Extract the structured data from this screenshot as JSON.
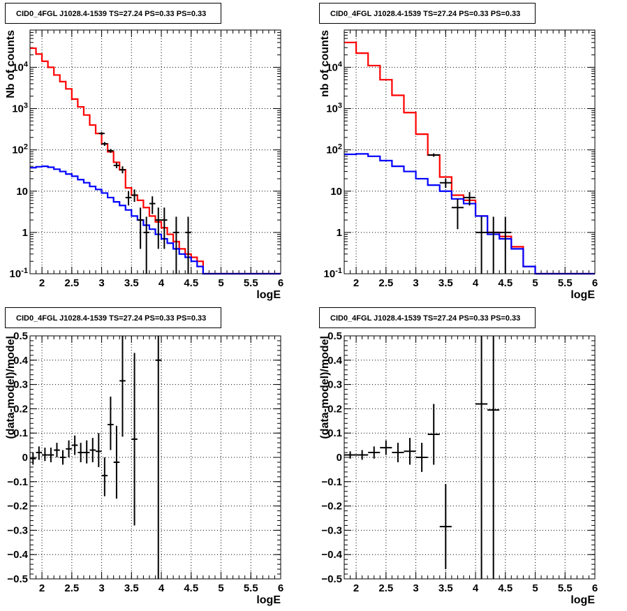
{
  "chart_data": [
    {
      "type": "step-histogram",
      "title": "CID0_4FGL J1028.4-1539 TS=27.24 PS=0.33 PS=0.33",
      "xlabel": "logE",
      "ylabel": "Nb of counts",
      "xlim": [
        1.8,
        6.0
      ],
      "ylim": [
        0.1,
        80000
      ],
      "yscale": "log",
      "grid": true,
      "x_ticks": [
        "2",
        "2.5",
        "3",
        "3.5",
        "4",
        "4.5",
        "5",
        "5.5",
        "6"
      ],
      "y_ticks": [
        "10^-1",
        "1",
        "10",
        "10^2",
        "10^3",
        "10^4"
      ],
      "bin_edges": [
        1.8,
        1.9,
        2.0,
        2.1,
        2.2,
        2.3,
        2.4,
        2.5,
        2.6,
        2.7,
        2.8,
        2.9,
        3.0,
        3.1,
        3.2,
        3.3,
        3.4,
        3.5,
        3.6,
        3.7,
        3.8,
        3.9,
        4.0,
        4.1,
        4.2,
        4.3,
        4.4,
        4.5,
        4.6,
        4.7,
        4.8,
        4.9,
        5.0,
        5.1,
        5.2,
        5.3,
        5.4,
        5.5,
        5.6,
        5.7,
        5.8,
        5.9,
        6.0
      ],
      "series": [
        {
          "color": "#ff0000",
          "style": "step",
          "values": [
            29000,
            21000,
            14000,
            10000,
            6500,
            4500,
            3000,
            1700,
            1100,
            700,
            400,
            250,
            140,
            90,
            50,
            33,
            12,
            8,
            6,
            4,
            2.5,
            1.8,
            1.3,
            0.9,
            0.6,
            0.4,
            0.3,
            0.25,
            0.2,
            0.1,
            0.1,
            0.1,
            0.1,
            0.1,
            0.1,
            0.1,
            0.1,
            0.1,
            0.1,
            0.1,
            0.1,
            0.1
          ]
        },
        {
          "color": "#0000ff",
          "style": "step",
          "values": [
            37,
            39,
            40,
            38,
            34,
            30,
            26,
            23,
            19,
            16,
            13,
            11,
            9,
            7,
            5.5,
            4.5,
            3.5,
            2.5,
            2,
            1.5,
            1.2,
            0.9,
            0.7,
            0.55,
            0.4,
            0.3,
            0.25,
            0.2,
            0.15,
            0.1,
            0.1,
            0.1,
            0.1,
            0.1,
            0.1,
            0.1,
            0.1,
            0.1,
            0.1,
            0.1,
            0.1,
            0.1
          ]
        },
        {
          "color": "#000000",
          "style": "errorbar",
          "points": [
            {
              "x": 3.0,
              "xerr": 0.05,
              "y": 250,
              "ylo": 230,
              "yhi": 270
            },
            {
              "x": 3.05,
              "xerr": 0.05,
              "y": 140,
              "ylo": 125,
              "yhi": 155
            },
            {
              "x": 3.15,
              "xerr": 0.05,
              "y": 95,
              "ylo": 85,
              "yhi": 105
            },
            {
              "x": 3.25,
              "xerr": 0.05,
              "y": 42,
              "ylo": 36,
              "yhi": 49
            },
            {
              "x": 3.35,
              "xerr": 0.05,
              "y": 33,
              "ylo": 27,
              "yhi": 40
            },
            {
              "x": 3.45,
              "xerr": 0.05,
              "y": 7,
              "ylo": 4.5,
              "yhi": 10
            },
            {
              "x": 3.55,
              "xerr": 0.05,
              "y": 8,
              "ylo": 5.5,
              "yhi": 11
            },
            {
              "x": 3.65,
              "xerr": 0.05,
              "y": 2,
              "ylo": 0.4,
              "yhi": 4
            },
            {
              "x": 3.75,
              "xerr": 0.05,
              "y": 1,
              "ylo": 0.1,
              "yhi": 2.4
            },
            {
              "x": 3.85,
              "xerr": 0.05,
              "y": 5,
              "ylo": 2.8,
              "yhi": 7.5
            },
            {
              "x": 3.95,
              "xerr": 0.05,
              "y": 2,
              "ylo": 0.4,
              "yhi": 4
            },
            {
              "x": 4.05,
              "xerr": 0.05,
              "y": 2,
              "ylo": 0.4,
              "yhi": 4
            },
            {
              "x": 4.25,
              "xerr": 0.05,
              "y": 1,
              "ylo": 0.1,
              "yhi": 2.4
            },
            {
              "x": 4.45,
              "xerr": 0.05,
              "y": 1,
              "ylo": 0.1,
              "yhi": 2.4
            }
          ]
        }
      ]
    },
    {
      "type": "step-histogram",
      "title": "CID0_4FGL J1028.4-1539 TS=27.24 PS=0.33 PS=0.33",
      "xlabel": "logE",
      "ylabel": "nb of counts",
      "xlim": [
        1.8,
        6.0
      ],
      "ylim": [
        0.1,
        80000
      ],
      "yscale": "log",
      "grid": true,
      "x_ticks": [
        "2",
        "2.5",
        "3",
        "3.5",
        "4",
        "4.5",
        "5",
        "5.5",
        "6"
      ],
      "y_ticks": [
        "10^-1",
        "1",
        "10",
        "10^2",
        "10^3",
        "10^4"
      ],
      "bin_edges": [
        1.8,
        2.0,
        2.2,
        2.4,
        2.6,
        2.8,
        3.0,
        3.2,
        3.4,
        3.6,
        3.8,
        4.0,
        4.2,
        4.4,
        4.6,
        4.8,
        5.0,
        5.2,
        5.4,
        5.6,
        5.8,
        6.0
      ],
      "series": [
        {
          "color": "#ff0000",
          "style": "step",
          "values": [
            40000,
            22000,
            11000,
            5000,
            2100,
            800,
            240,
            75,
            22,
            8,
            6,
            2.5,
            1,
            0.8,
            0.45,
            0.15,
            0.1,
            0.1,
            0.1,
            0.1,
            0.1
          ]
        },
        {
          "color": "#0000ff",
          "style": "step",
          "values": [
            78,
            80,
            70,
            55,
            40,
            30,
            20,
            14,
            10,
            6.5,
            5,
            2.5,
            0.9,
            0.7,
            0.4,
            0.15,
            0.1,
            0.1,
            0.1,
            0.1,
            0.1
          ]
        },
        {
          "color": "#000000",
          "style": "errorbar",
          "points": [
            {
              "x": 3.3,
              "xerr": 0.1,
              "y": 75,
              "ylo": 68,
              "yhi": 82
            },
            {
              "x": 3.5,
              "xerr": 0.1,
              "y": 16,
              "ylo": 12,
              "yhi": 20
            },
            {
              "x": 3.7,
              "xerr": 0.1,
              "y": 4,
              "ylo": 1.2,
              "yhi": 6.5
            },
            {
              "x": 3.9,
              "xerr": 0.1,
              "y": 7,
              "ylo": 4.5,
              "yhi": 9.5
            },
            {
              "x": 4.1,
              "xerr": 0.1,
              "y": 1,
              "ylo": 0.1,
              "yhi": 2.4
            },
            {
              "x": 4.3,
              "xerr": 0.1,
              "y": 1,
              "ylo": 0.1,
              "yhi": 2.4
            },
            {
              "x": 4.5,
              "xerr": 0.1,
              "y": 1,
              "ylo": 0.1,
              "yhi": 2.4
            }
          ]
        }
      ]
    },
    {
      "type": "scatter",
      "title": "CID0_4FGL J1028.4-1539 TS=27.24 PS=0.33 PS=0.33",
      "xlabel": "logE",
      "ylabel": "(data-model)/model",
      "xlim": [
        1.8,
        6.0
      ],
      "ylim": [
        -0.5,
        0.5
      ],
      "yscale": "linear",
      "grid": true,
      "x_ticks": [
        "2",
        "2.5",
        "3",
        "3.5",
        "4",
        "4.5",
        "5",
        "5.5",
        "6"
      ],
      "y_ticks": [
        "−0.5",
        "−0.4",
        "−0.3",
        "−0.2",
        "−0.1",
        "0",
        "0.1",
        "0.2",
        "0.3",
        "0.4",
        "0.5"
      ],
      "series": [
        {
          "color": "#000000",
          "style": "errorbar",
          "points": [
            {
              "x": 1.85,
              "xerr": 0.05,
              "y": -0.005,
              "ylo": -0.03,
              "yhi": 0.02
            },
            {
              "x": 1.95,
              "xerr": 0.05,
              "y": 0.02,
              "ylo": -0.01,
              "yhi": 0.045
            },
            {
              "x": 2.05,
              "xerr": 0.05,
              "y": 0.01,
              "ylo": -0.015,
              "yhi": 0.04
            },
            {
              "x": 2.15,
              "xerr": 0.05,
              "y": 0.01,
              "ylo": -0.02,
              "yhi": 0.04
            },
            {
              "x": 2.25,
              "xerr": 0.05,
              "y": 0.03,
              "ylo": 0.0,
              "yhi": 0.06
            },
            {
              "x": 2.35,
              "xerr": 0.05,
              "y": 0.0,
              "ylo": -0.03,
              "yhi": 0.03
            },
            {
              "x": 2.45,
              "xerr": 0.05,
              "y": 0.035,
              "ylo": 0.0,
              "yhi": 0.07
            },
            {
              "x": 2.55,
              "xerr": 0.05,
              "y": 0.05,
              "ylo": 0.01,
              "yhi": 0.09
            },
            {
              "x": 2.65,
              "xerr": 0.05,
              "y": 0.02,
              "ylo": -0.02,
              "yhi": 0.06
            },
            {
              "x": 2.75,
              "xerr": 0.05,
              "y": 0.02,
              "ylo": -0.025,
              "yhi": 0.07
            },
            {
              "x": 2.85,
              "xerr": 0.05,
              "y": 0.03,
              "ylo": -0.02,
              "yhi": 0.08
            },
            {
              "x": 2.95,
              "xerr": 0.05,
              "y": 0.025,
              "ylo": -0.04,
              "yhi": 0.1
            },
            {
              "x": 3.05,
              "xerr": 0.05,
              "y": -0.075,
              "ylo": -0.16,
              "yhi": 0.0
            },
            {
              "x": 3.15,
              "xerr": 0.05,
              "y": 0.135,
              "ylo": 0.03,
              "yhi": 0.25
            },
            {
              "x": 3.25,
              "xerr": 0.05,
              "y": -0.02,
              "ylo": -0.17,
              "yhi": 0.13
            },
            {
              "x": 3.35,
              "xerr": 0.05,
              "y": 0.315,
              "ylo": 0.085,
              "yhi": 0.5
            },
            {
              "x": 3.55,
              "xerr": 0.05,
              "y": 0.075,
              "ylo": -0.28,
              "yhi": 0.43
            },
            {
              "x": 3.95,
              "xerr": 0.05,
              "y": 0.4,
              "ylo": -0.5,
              "yhi": 0.5
            }
          ]
        }
      ]
    },
    {
      "type": "scatter",
      "title": "CID0_4FGL J1028.4-1539 TS=27.24 PS=0.33 PS=0.33",
      "xlabel": "logE",
      "ylabel": "(data-model)/model",
      "xlim": [
        1.8,
        6.0
      ],
      "ylim": [
        -0.5,
        0.5
      ],
      "yscale": "linear",
      "grid": true,
      "x_ticks": [
        "2",
        "2.5",
        "3",
        "3.5",
        "4",
        "4.5",
        "5",
        "5.5",
        "6"
      ],
      "y_ticks": [
        "−0.5",
        "−0.4",
        "−0.3",
        "−0.2",
        "−0.1",
        "0",
        "0.1",
        "0.2",
        "0.3",
        "0.4",
        "0.5"
      ],
      "series": [
        {
          "color": "#000000",
          "style": "errorbar",
          "points": [
            {
              "x": 1.9,
              "xerr": 0.1,
              "y": 0.01,
              "ylo": -0.005,
              "yhi": 0.025
            },
            {
              "x": 2.1,
              "xerr": 0.1,
              "y": 0.01,
              "ylo": -0.01,
              "yhi": 0.03
            },
            {
              "x": 2.3,
              "xerr": 0.1,
              "y": 0.02,
              "ylo": -0.005,
              "yhi": 0.045
            },
            {
              "x": 2.5,
              "xerr": 0.1,
              "y": 0.04,
              "ylo": 0.01,
              "yhi": 0.07
            },
            {
              "x": 2.7,
              "xerr": 0.1,
              "y": 0.02,
              "ylo": -0.02,
              "yhi": 0.06
            },
            {
              "x": 2.9,
              "xerr": 0.1,
              "y": 0.025,
              "ylo": -0.03,
              "yhi": 0.08
            },
            {
              "x": 3.1,
              "xerr": 0.1,
              "y": 0.0,
              "ylo": -0.06,
              "yhi": 0.06
            },
            {
              "x": 3.3,
              "xerr": 0.1,
              "y": 0.095,
              "ylo": -0.03,
              "yhi": 0.22
            },
            {
              "x": 3.5,
              "xerr": 0.1,
              "y": -0.285,
              "ylo": -0.46,
              "yhi": -0.11
            },
            {
              "x": 4.1,
              "xerr": 0.1,
              "y": 0.22,
              "ylo": -0.5,
              "yhi": 0.5
            },
            {
              "x": 4.3,
              "xerr": 0.1,
              "y": 0.195,
              "ylo": -0.5,
              "yhi": 0.5
            }
          ]
        }
      ]
    }
  ]
}
